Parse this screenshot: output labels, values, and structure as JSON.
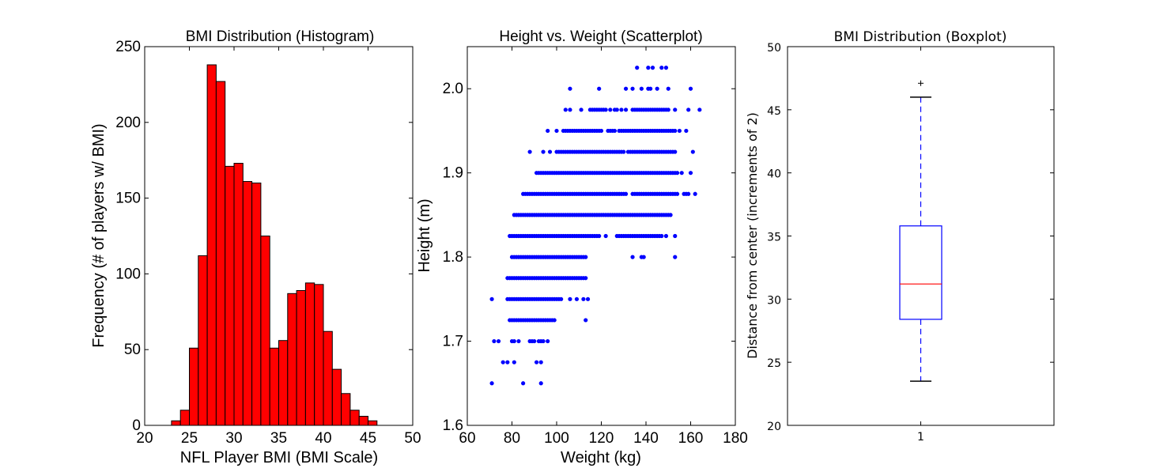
{
  "chart_data": [
    {
      "type": "bar",
      "title": "BMI Distribution (Histogram)",
      "xlabel": "NFL Player BMI (BMI Scale)",
      "ylabel": "Frequency (# of players w/ BMI)",
      "xlim": [
        20,
        50
      ],
      "ylim": [
        0,
        250
      ],
      "xticks": [
        "20",
        "25",
        "30",
        "35",
        "40",
        "45",
        "50"
      ],
      "yticks": [
        "0",
        "50",
        "100",
        "150",
        "200",
        "250"
      ],
      "bar_color": "#ff0000",
      "bin_start": 23.0,
      "bin_width": 1.0,
      "values": [
        3,
        10,
        51,
        112,
        238,
        227,
        171,
        173,
        161,
        160,
        125,
        51,
        56,
        87,
        89,
        94,
        93,
        62,
        37,
        21,
        10,
        6,
        3
      ]
    },
    {
      "type": "scatter",
      "title": "Height vs. Weight (Scatterplot)",
      "xlabel": "Weight (kg)",
      "ylabel": "Height (m)",
      "xlim": [
        60,
        180
      ],
      "ylim": [
        1.6,
        2.05
      ],
      "xticks": [
        "60",
        "80",
        "100",
        "120",
        "140",
        "160",
        "180"
      ],
      "yticks": [
        "1.6",
        "1.7",
        "1.8",
        "1.9",
        "2.0"
      ],
      "point_color": "#0000ff",
      "rows": [
        {
          "y": 1.65,
          "x": [
            71,
            85,
            93
          ]
        },
        {
          "y": 1.675,
          "x": [
            76,
            78,
            81,
            91,
            93
          ]
        },
        {
          "y": 1.7,
          "x": [
            72,
            74,
            80,
            81,
            83,
            88,
            89,
            90,
            92,
            93,
            94,
            96
          ]
        },
        {
          "y": 1.725,
          "x": [
            79,
            80,
            81,
            82,
            83,
            84,
            85,
            86,
            87,
            88,
            89,
            90,
            91,
            92,
            93,
            94,
            95,
            96,
            97,
            98,
            99,
            113
          ]
        },
        {
          "y": 1.75,
          "x": [
            71,
            78,
            79,
            80,
            81,
            82,
            83,
            84,
            85,
            86,
            87,
            88,
            89,
            90,
            91,
            92,
            93,
            94,
            95,
            96,
            97,
            98,
            99,
            100,
            101,
            102,
            106,
            109,
            112,
            114
          ]
        },
        {
          "y": 1.775,
          "x": [
            78,
            79,
            80,
            81,
            82,
            83,
            84,
            85,
            86,
            87,
            88,
            89,
            90,
            91,
            92,
            93,
            94,
            95,
            96,
            97,
            98,
            99,
            100,
            101,
            102,
            103,
            104,
            105,
            106,
            107,
            108,
            109,
            110,
            111,
            112,
            113
          ]
        },
        {
          "y": 1.8,
          "x": [
            80,
            81,
            82,
            83,
            84,
            85,
            86,
            87,
            88,
            89,
            90,
            91,
            92,
            93,
            94,
            95,
            96,
            97,
            98,
            99,
            100,
            101,
            102,
            103,
            104,
            105,
            106,
            107,
            108,
            109,
            110,
            111,
            112,
            113,
            134,
            138,
            139,
            153
          ]
        },
        {
          "y": 1.825,
          "x": [
            79,
            80,
            81,
            82,
            83,
            84,
            85,
            86,
            87,
            88,
            89,
            90,
            91,
            92,
            93,
            94,
            95,
            96,
            97,
            98,
            99,
            100,
            101,
            102,
            103,
            104,
            105,
            106,
            107,
            108,
            109,
            110,
            111,
            112,
            113,
            114,
            115,
            116,
            117,
            118,
            119,
            122,
            127,
            128,
            129,
            130,
            131,
            132,
            133,
            134,
            135,
            136,
            137,
            138,
            139,
            140,
            141,
            142,
            143,
            144,
            145,
            146,
            147,
            149,
            153
          ]
        },
        {
          "y": 1.85,
          "x": [
            81,
            82,
            83,
            84,
            85,
            86,
            87,
            88,
            89,
            90,
            91,
            92,
            93,
            94,
            95,
            96,
            97,
            98,
            99,
            100,
            101,
            102,
            103,
            104,
            105,
            106,
            107,
            108,
            109,
            110,
            111,
            112,
            113,
            114,
            115,
            116,
            117,
            118,
            119,
            120,
            121,
            122,
            123,
            124,
            125,
            126,
            127,
            128,
            129,
            130,
            131,
            132,
            133,
            134,
            135,
            136,
            137,
            138,
            139,
            140,
            141,
            142,
            143,
            144,
            145,
            146,
            147,
            148,
            149,
            150,
            151
          ]
        },
        {
          "y": 1.875,
          "x": [
            85,
            86,
            87,
            88,
            89,
            90,
            91,
            92,
            93,
            94,
            95,
            96,
            97,
            98,
            99,
            100,
            101,
            102,
            103,
            104,
            105,
            106,
            107,
            108,
            109,
            110,
            111,
            112,
            113,
            114,
            115,
            116,
            117,
            118,
            119,
            120,
            121,
            122,
            123,
            124,
            125,
            126,
            127,
            128,
            129,
            130,
            131,
            134,
            135,
            136,
            137,
            138,
            139,
            140,
            141,
            142,
            143,
            144,
            145,
            146,
            147,
            148,
            149,
            150,
            151,
            152,
            153,
            154,
            157,
            158,
            159,
            162
          ]
        },
        {
          "y": 1.9,
          "x": [
            91,
            92,
            93,
            94,
            95,
            96,
            97,
            98,
            99,
            100,
            101,
            102,
            103,
            104,
            105,
            106,
            107,
            108,
            109,
            110,
            111,
            112,
            113,
            114,
            115,
            116,
            117,
            118,
            119,
            120,
            121,
            122,
            123,
            124,
            125,
            126,
            127,
            128,
            129,
            130,
            131,
            132,
            133,
            134,
            135,
            136,
            137,
            138,
            139,
            140,
            141,
            142,
            143,
            144,
            145,
            146,
            147,
            148,
            149,
            150,
            151,
            152,
            153,
            154,
            156,
            160
          ]
        },
        {
          "y": 1.925,
          "x": [
            88,
            94,
            97,
            100,
            101,
            102,
            103,
            104,
            105,
            106,
            107,
            108,
            109,
            110,
            111,
            112,
            113,
            114,
            115,
            116,
            117,
            118,
            119,
            120,
            121,
            122,
            123,
            124,
            125,
            126,
            127,
            128,
            129,
            130,
            132,
            133,
            134,
            135,
            136,
            137,
            138,
            139,
            140,
            141,
            142,
            143,
            144,
            145,
            146,
            147,
            148,
            149,
            150,
            151,
            152,
            153,
            161
          ]
        },
        {
          "y": 1.95,
          "x": [
            96,
            100,
            103,
            104,
            105,
            106,
            107,
            108,
            109,
            110,
            111,
            112,
            113,
            114,
            115,
            116,
            117,
            118,
            119,
            120,
            123,
            124,
            125,
            126,
            128,
            129,
            130,
            131,
            132,
            133,
            134,
            135,
            136,
            137,
            138,
            139,
            140,
            141,
            142,
            143,
            144,
            145,
            146,
            147,
            148,
            149,
            150,
            151,
            152,
            153,
            155,
            158
          ]
        },
        {
          "y": 1.975,
          "x": [
            104,
            106,
            111,
            115,
            116,
            117,
            118,
            119,
            120,
            121,
            122,
            124,
            126,
            127,
            129,
            131,
            134,
            135,
            136,
            137,
            138,
            139,
            140,
            141,
            142,
            143,
            144,
            145,
            146,
            147,
            148,
            149,
            150,
            153,
            159,
            164
          ]
        },
        {
          "y": 2.0,
          "x": [
            106,
            119,
            131,
            134,
            138,
            141,
            142,
            145,
            150,
            160
          ]
        },
        {
          "y": 2.025,
          "x": [
            136,
            141,
            143,
            147,
            149
          ]
        }
      ]
    },
    {
      "type": "box",
      "title": "BMI Distribution (Boxplot)",
      "xlabel": "",
      "ylabel": "Distance from center (increments of 2)",
      "ylim": [
        20,
        50
      ],
      "yticks": [
        "20",
        "25",
        "30",
        "35",
        "40",
        "45",
        "50"
      ],
      "xticks": [
        "1"
      ],
      "box": {
        "whisker_low": 23.5,
        "q1": 28.4,
        "median": 31.2,
        "q3": 35.8,
        "whisker_high": 46.0,
        "outliers": [
          47.1
        ]
      },
      "box_color": "#0000ff",
      "median_color": "#ff0000"
    }
  ]
}
